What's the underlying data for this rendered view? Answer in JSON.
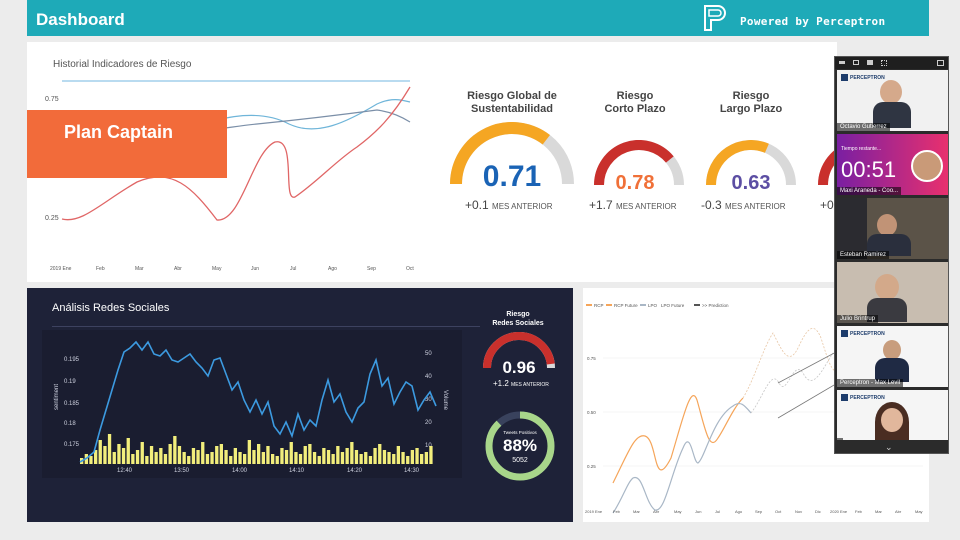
{
  "header": {
    "title": "Dashboard",
    "powered": "Powered by Perceptron"
  },
  "overlay": {
    "label": "Plan Captain"
  },
  "history_chart": {
    "title": "Historial Indicadores de Riesgo",
    "y_ticks": [
      "0.75",
      "0.25"
    ],
    "x_ticks": [
      "2019 Ene",
      "Feb",
      "Mar",
      "Abr",
      "May",
      "Jun",
      "Jul",
      "Ago",
      "Sep",
      "Oct"
    ],
    "colors": [
      "#d9534f",
      "#5bb8d6",
      "#7b8fa8",
      "#6fa8dc"
    ]
  },
  "gauges": [
    {
      "title_1": "Riesgo Global de",
      "title_2": "Sustentabilidad",
      "value": "0.71",
      "fraction": 0.71,
      "delta": "+0.1",
      "delta_label": "MES ANTERIOR",
      "color": "#f5a623",
      "value_color": "#1a63b5"
    },
    {
      "title_1": "Riesgo",
      "title_2": "Corto Plazo",
      "value": "0.78",
      "fraction": 0.78,
      "delta": "+1.7",
      "delta_label": "MES ANTERIOR",
      "color": "#c9302c",
      "value_color": "#f07038"
    },
    {
      "title_1": "Riesgo",
      "title_2": "Largo Plazo",
      "value": "0.63",
      "fraction": 0.63,
      "delta": "-0.3",
      "delta_label": "MES ANTERIOR",
      "color": "#f5a623",
      "value_color": "#5c4ea3"
    },
    {
      "value": "",
      "fraction": 0.85,
      "delta": "+0",
      "color": "#c9302c"
    }
  ],
  "social": {
    "title": "Análisis Redes Sociales",
    "y_left_label": "sentiment",
    "y_right_label": "Volume",
    "y_left_ticks": [
      "0.195",
      "0.19",
      "0.185",
      "0.18",
      "0.175"
    ],
    "y_right_ticks": [
      "50",
      "40",
      "30",
      "20",
      "10"
    ],
    "x_ticks": [
      "12:40",
      "13:50",
      "14:00",
      "14:10",
      "14:20",
      "14:30"
    ],
    "line_color": "#3c9ae0",
    "bar_color": "#f2ee7c",
    "risk_gauge": {
      "title_1": "Riesgo",
      "title_2": "Redes Sociales",
      "value": "0.96",
      "fraction": 0.96,
      "delta": "+1.2",
      "delta_label": "MES ANTERIOR",
      "color": "#c9302c"
    },
    "donut": {
      "label": "Tweets Positivos",
      "percent": "88%",
      "fraction": 0.88,
      "count": "5052",
      "color": "#a8d68a"
    }
  },
  "future_chart": {
    "legend": [
      "RCP",
      "RCP Future",
      "LPO",
      "LPO Future",
      ">> Prediction"
    ],
    "legend_colors": [
      "#f5a55a",
      "#f5a55a",
      "#a9b7c6",
      "#a9b7c6",
      "#555555"
    ],
    "y_ticks": [
      "0.75",
      "0.50",
      "0.25"
    ],
    "x_ticks": [
      "2019 Ene",
      "Feb",
      "Mar",
      "Abr",
      "May",
      "Jun",
      "Jul",
      "Ago",
      "Sep",
      "Oct",
      "Nov",
      "Dic",
      "2020 Ene",
      "Feb",
      "Mar",
      "Abr",
      "May"
    ]
  },
  "video_call": {
    "timer_label": "Tiempo restante...",
    "timer": "00:51",
    "participants": [
      "Octavio Gutierrez",
      "Maxi Araneda - Coo...",
      "Esteban Ramirez",
      "Julio Brintrup",
      "Perceptron - Max Levil",
      ""
    ],
    "logo_text": "PERCEPTRON"
  }
}
